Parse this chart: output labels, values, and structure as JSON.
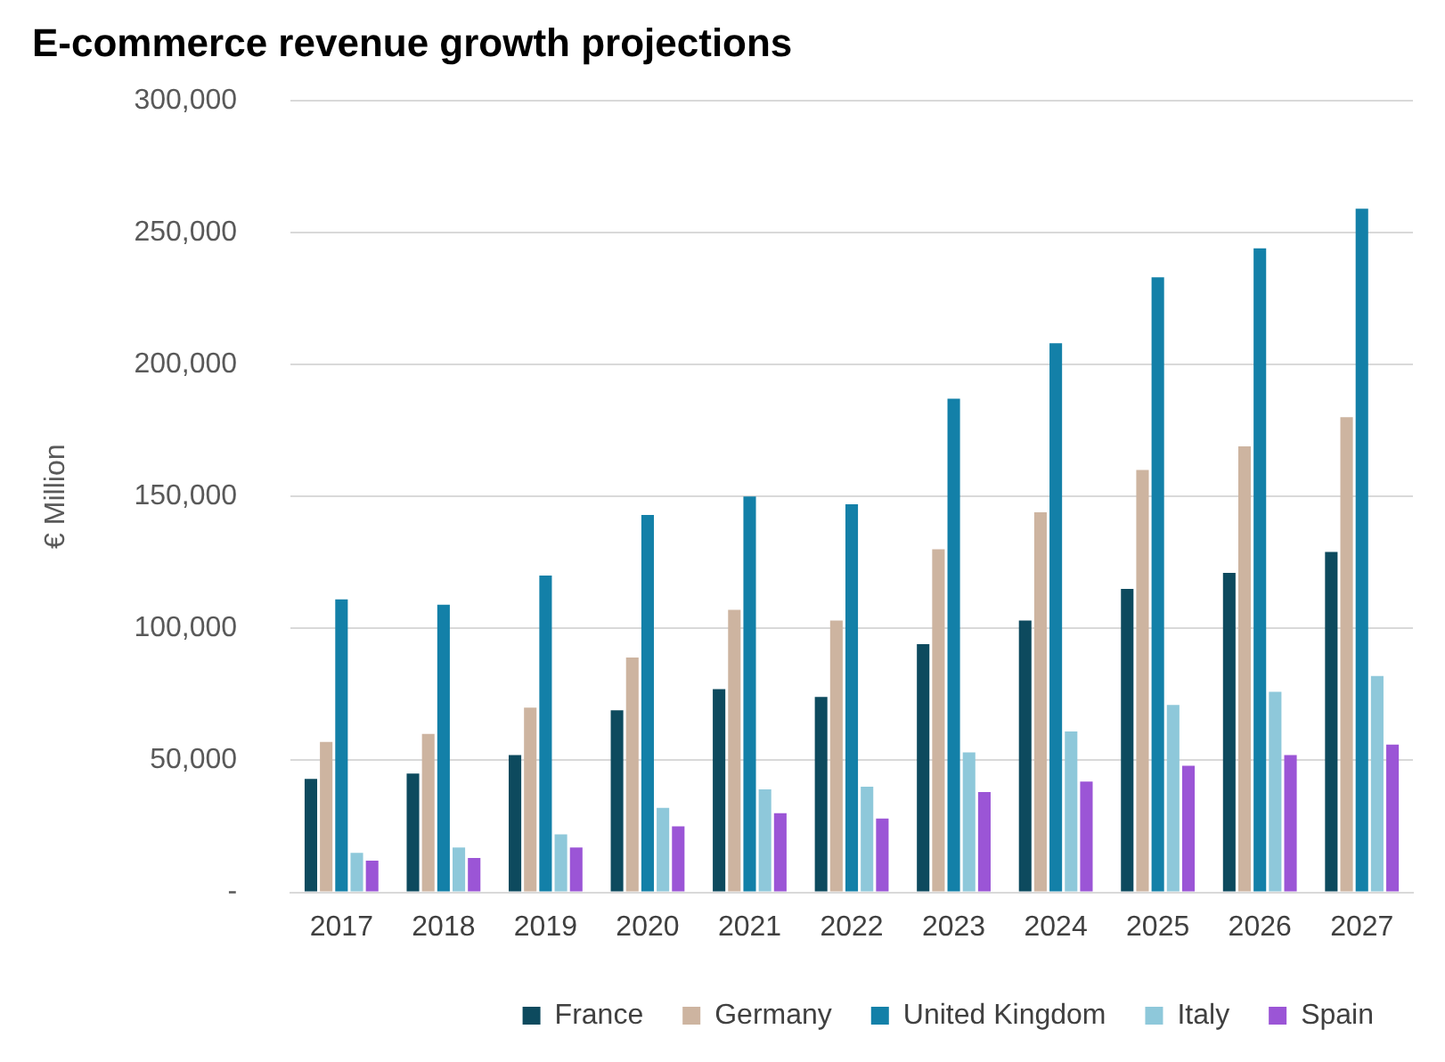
{
  "chart_data": {
    "type": "bar",
    "title": "E-commerce revenue growth projections",
    "ylabel": "€ Million",
    "categories": [
      "2017",
      "2018",
      "2019",
      "2020",
      "2021",
      "2022",
      "2023",
      "2024",
      "2025",
      "2026",
      "2027"
    ],
    "series": [
      {
        "name": "France",
        "color": "#0d4a5e",
        "values": [
          43000,
          45000,
          52000,
          69000,
          77000,
          74000,
          94000,
          103000,
          115000,
          121000,
          129000
        ]
      },
      {
        "name": "Germany",
        "color": "#cdb4a0",
        "values": [
          57000,
          60000,
          70000,
          89000,
          107000,
          103000,
          130000,
          144000,
          160000,
          169000,
          180000
        ]
      },
      {
        "name": "United Kingdom",
        "color": "#1380a8",
        "values": [
          111000,
          109000,
          120000,
          143000,
          150000,
          147000,
          187000,
          208000,
          233000,
          244000,
          259000
        ]
      },
      {
        "name": "Italy",
        "color": "#8ec8da",
        "values": [
          15000,
          17000,
          22000,
          32000,
          39000,
          40000,
          53000,
          61000,
          71000,
          76000,
          82000
        ]
      },
      {
        "name": "Spain",
        "color": "#9b55d6",
        "values": [
          12000,
          13000,
          17000,
          25000,
          30000,
          28000,
          38000,
          42000,
          48000,
          52000,
          56000
        ]
      }
    ],
    "ylim": [
      0,
      300000
    ],
    "yticks": [
      {
        "value": 0,
        "label": "-"
      },
      {
        "value": 50000,
        "label": "50,000"
      },
      {
        "value": 100000,
        "label": "100,000"
      },
      {
        "value": 150000,
        "label": "150,000"
      },
      {
        "value": 200000,
        "label": "200,000"
      },
      {
        "value": 250000,
        "label": "250,000"
      },
      {
        "value": 300000,
        "label": "300,000"
      }
    ],
    "grid": "y",
    "legend": "bottom"
  }
}
